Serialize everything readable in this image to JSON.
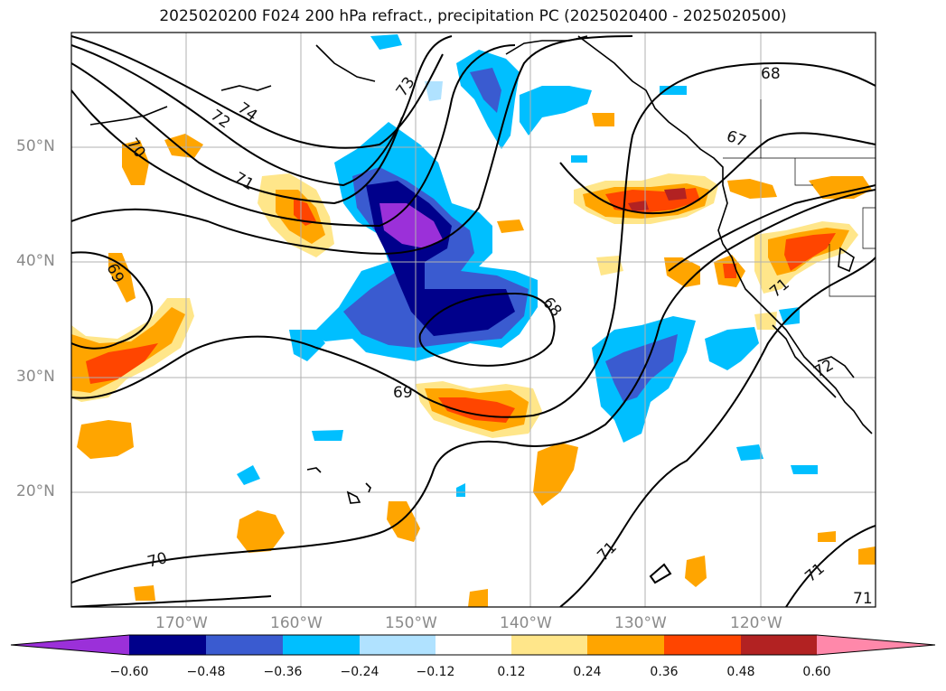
{
  "title": "2025020200 F024 200 hPa refract., precipitation PC (2025020400 - 2025020500)",
  "lat_labels": [
    "50°N",
    "40°N",
    "30°N",
    "20°N"
  ],
  "lon_labels": [
    "170°W",
    "160°W",
    "150°W",
    "140°W",
    "130°W",
    "120°W"
  ],
  "contour_labels": [
    "74",
    "73",
    "72",
    "71",
    "70",
    "69",
    "69",
    "68",
    "68",
    "67",
    "71",
    "70",
    "71",
    "71",
    "72",
    "71"
  ],
  "colorbar": {
    "ticks": [
      "−0.60",
      "−0.48",
      "−0.36",
      "−0.24",
      "−0.12",
      "0.12",
      "0.24",
      "0.36",
      "0.48",
      "0.60"
    ],
    "colors": [
      "#9b30d9",
      "#00008b",
      "#3a5bd0",
      "#00bfff",
      "#b0e2ff",
      "#ffffff",
      "#ffe68a",
      "#ffa500",
      "#ff4500",
      "#b22222",
      "#ff88aa"
    ]
  },
  "colors": {
    "neg_weak": "#b0e2ff",
    "neg_mid": "#00bfff",
    "neg_strong": "#3a5bd0",
    "neg_vstrong": "#00008b",
    "neg_max": "#9b30d9",
    "pos_weak": "#ffe68a",
    "pos_mid": "#ffa500",
    "pos_strong": "#ff4500",
    "pos_vstrong": "#b22222"
  }
}
